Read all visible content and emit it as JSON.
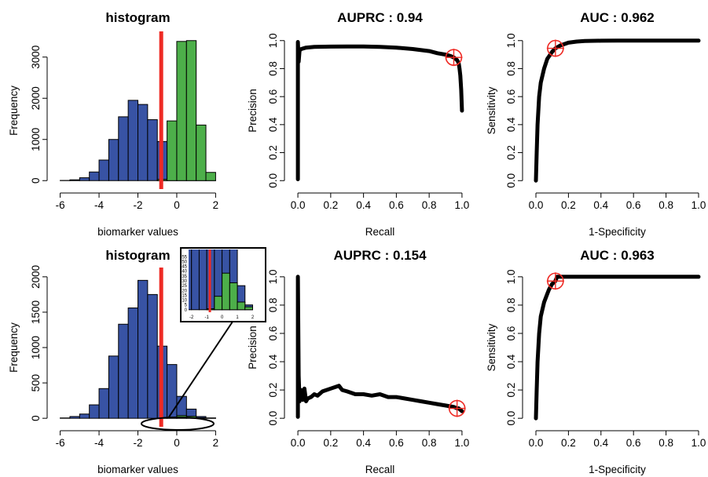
{
  "colors": {
    "negative": "#3853a4",
    "positive": "#4daf4a",
    "threshold": "#ee2a24",
    "curve": "#000000",
    "marker": "#ee2a24"
  },
  "chart_data": [
    {
      "type": "bar",
      "panel": "top-left",
      "title": "histogram",
      "xlabel": "biomarker values",
      "ylabel": "Frequency",
      "xlim": [
        -6,
        2
      ],
      "ylim": [
        0,
        3400
      ],
      "xticks": [
        "-6",
        "-4",
        "-2",
        "0",
        "2"
      ],
      "yticks": [
        "0",
        "1000",
        "2000",
        "3000"
      ],
      "bin_edges": [
        -6,
        -5.5,
        -5,
        -4.5,
        -4,
        -3.5,
        -3,
        -2.5,
        -2,
        -1.5,
        -1,
        -0.5,
        0,
        0.5,
        1,
        1.5,
        2
      ],
      "series": [
        {
          "name": "",
          "color_key": "negative",
          "values": [
            5,
            20,
            70,
            210,
            500,
            1000,
            1550,
            1950,
            1850,
            1480,
            950,
            480,
            170,
            50,
            10,
            2
          ]
        },
        {
          "name": "",
          "color_key": "positive",
          "values": [
            0,
            0,
            0,
            0,
            0,
            0,
            0,
            0,
            0,
            0,
            30,
            1450,
            3380,
            3400,
            1350,
            200
          ]
        }
      ],
      "threshold": -0.8
    },
    {
      "type": "line",
      "panel": "top-middle",
      "title": "AUPRC : 0.94",
      "xlabel": "Recall",
      "ylabel": "Precision",
      "xlim": [
        0,
        1
      ],
      "ylim": [
        0,
        1
      ],
      "xticks": [
        "0.0",
        "0.2",
        "0.4",
        "0.6",
        "0.8",
        "1.0"
      ],
      "yticks": [
        "0.0",
        "0.2",
        "0.4",
        "0.6",
        "0.8",
        "1.0"
      ],
      "series": [
        {
          "name": "",
          "x": [
            0,
            0,
            0,
            0.005,
            0.01,
            0.02,
            0.05,
            0.1,
            0.2,
            0.3,
            0.4,
            0.5,
            0.6,
            0.7,
            0.8,
            0.85,
            0.9,
            0.93,
            0.95,
            0.97,
            0.98,
            0.985,
            0.99,
            0.995,
            1.0
          ],
          "y": [
            0.01,
            0.5,
            0.99,
            0.85,
            0.93,
            0.94,
            0.95,
            0.955,
            0.957,
            0.958,
            0.958,
            0.955,
            0.95,
            0.94,
            0.925,
            0.91,
            0.9,
            0.89,
            0.88,
            0.86,
            0.84,
            0.8,
            0.75,
            0.65,
            0.5
          ]
        }
      ],
      "marker": {
        "x": 0.95,
        "y": 0.88
      }
    },
    {
      "type": "line",
      "panel": "top-right",
      "title": "AUC : 0.962",
      "xlabel": "1-Specificity",
      "ylabel": "Sensitivity",
      "xlim": [
        0,
        1
      ],
      "ylim": [
        0,
        1
      ],
      "xticks": [
        "0.0",
        "0.2",
        "0.4",
        "0.6",
        "0.8",
        "1.0"
      ],
      "yticks": [
        "0.0",
        "0.2",
        "0.4",
        "0.6",
        "0.8",
        "1.0"
      ],
      "series": [
        {
          "name": "",
          "x": [
            0,
            0.005,
            0.01,
            0.02,
            0.03,
            0.05,
            0.07,
            0.1,
            0.12,
            0.15,
            0.2,
            0.25,
            0.3,
            0.4,
            0.5,
            0.6,
            0.8,
            1.0
          ],
          "y": [
            0,
            0.2,
            0.4,
            0.6,
            0.7,
            0.8,
            0.87,
            0.92,
            0.945,
            0.965,
            0.985,
            0.993,
            0.997,
            0.999,
            1.0,
            1.0,
            1.0,
            1.0
          ]
        }
      ],
      "marker": {
        "x": 0.12,
        "y": 0.945
      }
    },
    {
      "type": "bar",
      "panel": "bottom-left",
      "title": "histogram",
      "xlabel": "biomarker values",
      "ylabel": "Frequency",
      "xlim": [
        -6,
        2
      ],
      "ylim": [
        0,
        2000
      ],
      "xticks": [
        "-6",
        "-4",
        "-2",
        "0",
        "2"
      ],
      "yticks": [
        "0",
        "500",
        "1000",
        "1500",
        "2000"
      ],
      "bin_edges": [
        -6,
        -5.5,
        -5,
        -4.5,
        -4,
        -3.5,
        -3,
        -2.5,
        -2,
        -1.5,
        -1,
        -0.5,
        0,
        0.5,
        1,
        1.5,
        2
      ],
      "series": [
        {
          "name": "",
          "color_key": "negative",
          "values": [
            5,
            25,
            60,
            190,
            420,
            880,
            1330,
            1560,
            1950,
            1750,
            1020,
            760,
            310,
            130,
            25,
            5
          ]
        },
        {
          "name": "",
          "color_key": "positive",
          "values": [
            0,
            0,
            0,
            0,
            0,
            0,
            0,
            0,
            0,
            0,
            1,
            14,
            38,
            28,
            8,
            3
          ]
        }
      ],
      "threshold": -0.8,
      "inset": {
        "xlim": [
          -2,
          2.4
        ],
        "ylim": [
          0,
          60
        ],
        "xticks": [
          "-2",
          "-1",
          "0",
          "1",
          "2"
        ],
        "yticks": [
          "0",
          "5",
          "10",
          "15",
          "20",
          "25",
          "30",
          "35",
          "40",
          "45",
          "50",
          "55"
        ]
      }
    },
    {
      "type": "line",
      "panel": "bottom-middle",
      "title": "AUPRC : 0.154",
      "xlabel": "Recall",
      "ylabel": "Precision",
      "xlim": [
        0,
        1
      ],
      "ylim": [
        0,
        1
      ],
      "xticks": [
        "0.0",
        "0.2",
        "0.4",
        "0.6",
        "0.8",
        "1.0"
      ],
      "yticks": [
        "0.0",
        "0.2",
        "0.4",
        "0.6",
        "0.8",
        "1.0"
      ],
      "series": [
        {
          "name": "",
          "x": [
            0,
            0,
            0,
            0.005,
            0.01,
            0.02,
            0.03,
            0.04,
            0.05,
            0.06,
            0.08,
            0.1,
            0.12,
            0.15,
            0.2,
            0.25,
            0.27,
            0.3,
            0.35,
            0.4,
            0.45,
            0.5,
            0.55,
            0.6,
            0.65,
            0.7,
            0.75,
            0.8,
            0.85,
            0.9,
            0.95,
            0.97,
            0.98,
            0.99,
            1.0
          ],
          "y": [
            0.01,
            0.55,
            1.0,
            0.3,
            0.12,
            0.2,
            0.13,
            0.21,
            0.12,
            0.14,
            0.15,
            0.17,
            0.16,
            0.19,
            0.21,
            0.23,
            0.2,
            0.19,
            0.17,
            0.17,
            0.16,
            0.17,
            0.15,
            0.15,
            0.14,
            0.13,
            0.12,
            0.11,
            0.1,
            0.09,
            0.08,
            0.07,
            0.07,
            0.06,
            0.05
          ]
        }
      ],
      "marker": {
        "x": 0.97,
        "y": 0.07
      }
    },
    {
      "type": "line",
      "panel": "bottom-right",
      "title": "AUC : 0.963",
      "xlabel": "1-Specificity",
      "ylabel": "Sensitivity",
      "xlim": [
        0,
        1
      ],
      "ylim": [
        0,
        1
      ],
      "xticks": [
        "0.0",
        "0.2",
        "0.4",
        "0.6",
        "0.8",
        "1.0"
      ],
      "yticks": [
        "0.0",
        "0.2",
        "0.4",
        "0.6",
        "0.8",
        "1.0"
      ],
      "series": [
        {
          "name": "",
          "x": [
            0,
            0.005,
            0.01,
            0.02,
            0.03,
            0.05,
            0.07,
            0.08,
            0.1,
            0.12,
            0.13,
            0.15,
            0.2,
            0.3,
            0.4,
            0.6,
            0.8,
            1.0
          ],
          "y": [
            0,
            0.2,
            0.4,
            0.6,
            0.72,
            0.82,
            0.88,
            0.91,
            0.95,
            0.97,
            1.0,
            1.0,
            1.0,
            1.0,
            1.0,
            1.0,
            1.0,
            1.0
          ]
        }
      ],
      "marker": {
        "x": 0.12,
        "y": 0.97
      }
    }
  ]
}
